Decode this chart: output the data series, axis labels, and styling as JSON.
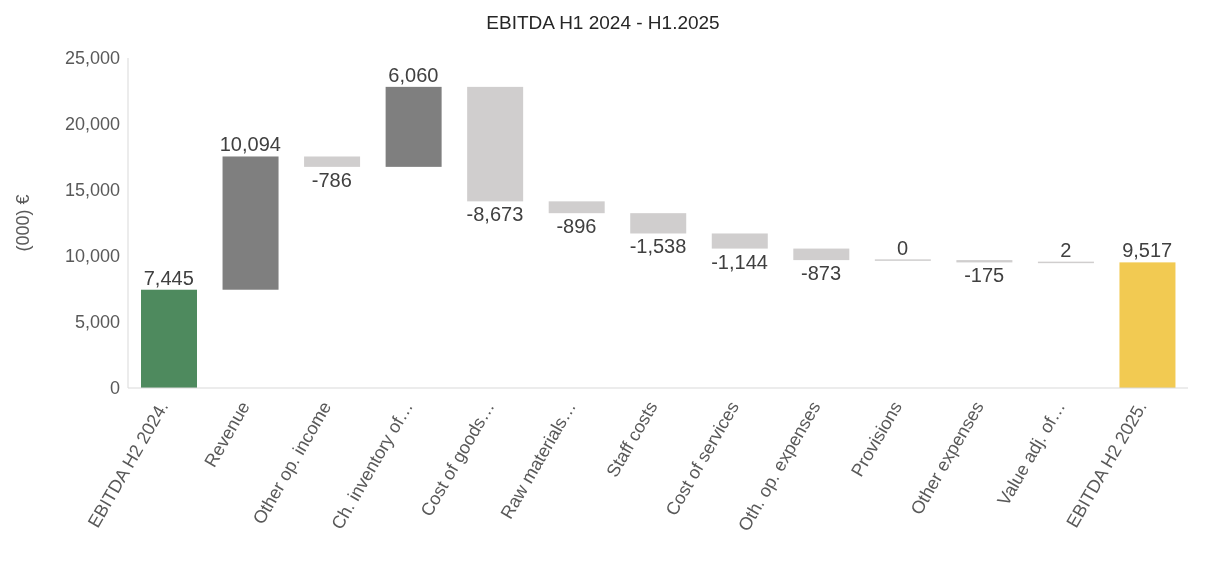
{
  "chart_data": {
    "type": "bar",
    "title": "EBITDA H1 2024 - H1.2025",
    "ylabel": "(000) €",
    "categories": [
      "EBITDA H2 2024.",
      "Revenue",
      "Other op. income",
      "Ch. inventory of…",
      "Cost of goods…",
      "Raw materials…",
      "Staff costs",
      "Cost of services",
      "Oth. op. expenses",
      "Provisions",
      "Other expenses",
      "Value adj. of…",
      "EBITDA H2 2025."
    ],
    "values": [
      7445,
      10094,
      -786,
      6060,
      -8673,
      -896,
      -1538,
      -1144,
      -873,
      0,
      -175,
      2,
      9517
    ],
    "value_labels": [
      "7,445",
      "10,094",
      "-786",
      "6,060",
      "-8,673",
      "-896",
      "-1,538",
      "-1,144",
      "-873",
      "0",
      "-175",
      "2",
      "9,517"
    ],
    "base": [
      0,
      7445,
      17539,
      16753,
      22813,
      14140,
      13244,
      11706,
      10562,
      9689,
      9689,
      9514,
      0
    ],
    "colors": [
      "#4e8a5e",
      "#7f7f7f",
      "#d0cece",
      "#7f7f7f",
      "#d0cece",
      "#d0cece",
      "#d0cece",
      "#d0cece",
      "#d0cece",
      "#d0cece",
      "#d0cece",
      "#d0cece",
      "#f2ca52"
    ],
    "ylim": [
      0,
      25000
    ],
    "yticks": [
      0,
      {
        "value": 5000,
        "label": "5,000"
      },
      {
        "value": 10000,
        "label": "10,000"
      },
      {
        "value": 15000,
        "label": "15,000"
      },
      {
        "value": 20000,
        "label": "20,000"
      },
      {
        "value": 25000,
        "label": "25,000"
      }
    ]
  }
}
